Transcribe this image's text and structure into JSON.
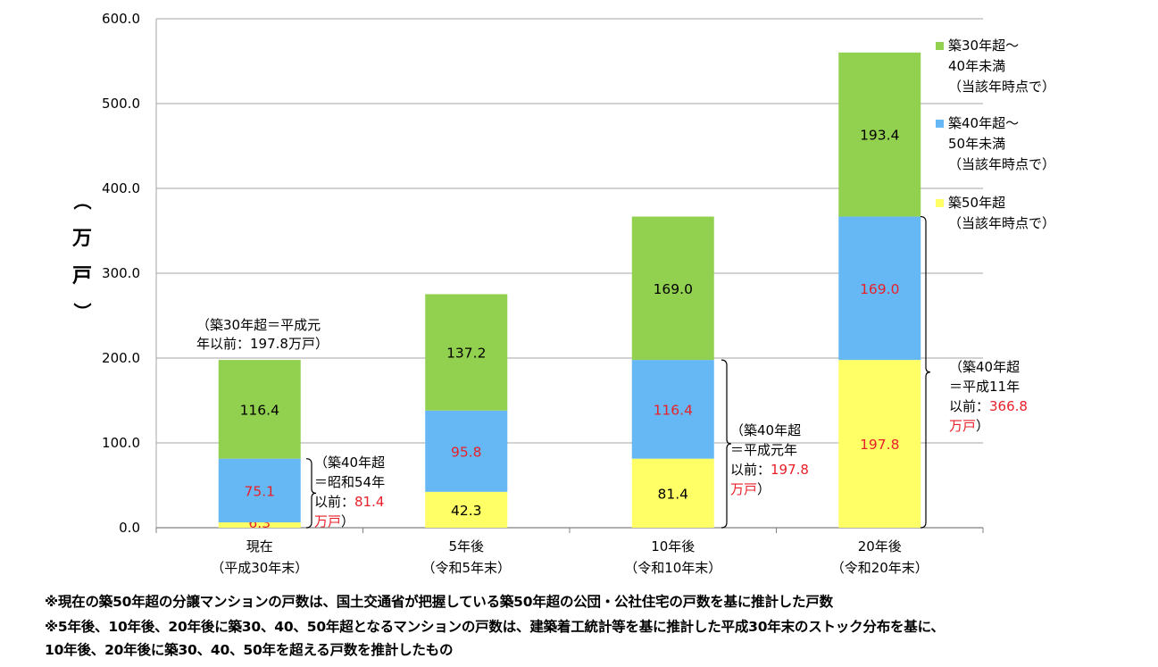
{
  "chart_data": {
    "type": "bar",
    "stacked": true,
    "ylabel": "（万戸）",
    "ylim": [
      0,
      600
    ],
    "yticks": [
      "0.0",
      "100.0",
      "200.0",
      "300.0",
      "400.0",
      "500.0",
      "600.0"
    ],
    "grid": true,
    "legend_position": "right",
    "categories": [
      {
        "line1": "現在",
        "line2": "（平成30年末）"
      },
      {
        "line1": "5年後",
        "line2": "（令和5年末）"
      },
      {
        "line1": "10年後",
        "line2": "（令和10年末）"
      },
      {
        "line1": "20年後",
        "line2": "（令和20年末）"
      }
    ],
    "series": [
      {
        "name": "築50年超",
        "legend": [
          "築50年超",
          "（当該年時点で）"
        ],
        "color": "#FFFF66",
        "values": [
          6.3,
          42.3,
          81.4,
          197.8
        ],
        "labels": [
          "6.3",
          "42.3",
          "81.4",
          "197.8"
        ],
        "label_colors": [
          "#E8202A",
          "#000000",
          "#000000",
          "#E8202A"
        ]
      },
      {
        "name": "築40年超～50年未満",
        "legend": [
          "築40年超～",
          "50年未満",
          "（当該年時点で）"
        ],
        "color": "#66B8F5",
        "values": [
          75.1,
          95.8,
          116.4,
          169.0
        ],
        "labels": [
          "75.1",
          "95.8",
          "116.4",
          "169.0"
        ],
        "label_colors": [
          "#E8202A",
          "#E8202A",
          "#E8202A",
          "#E8202A"
        ]
      },
      {
        "name": "築30年超～40年未満",
        "legend": [
          "築30年超～",
          "40年未満",
          "（当該年時点で）"
        ],
        "color": "#92D050",
        "values": [
          116.4,
          137.2,
          169.0,
          193.4
        ],
        "labels": [
          "116.4",
          "137.2",
          "169.0",
          "193.4"
        ],
        "label_colors": [
          "#000000",
          "#000000",
          "#000000",
          "#000000"
        ]
      }
    ],
    "annotations": {
      "top_note": [
        "（築30年超＝平成元",
        "年以前：197.8万戸）"
      ],
      "brackets": [
        {
          "category_index": 0,
          "from": 0,
          "to": 81.4,
          "lines": [
            [
              "（築40年超"
            ],
            [
              "＝昭和54年"
            ],
            [
              "以前：",
              "81.4"
            ],
            [
              "万戸",
              "）"
            ]
          ]
        },
        {
          "category_index": 2,
          "from": 0,
          "to": 197.8,
          "lines": [
            [
              "（築40年超"
            ],
            [
              "＝平成元年"
            ],
            [
              "以前：",
              "197.8"
            ],
            [
              "万戸",
              "）"
            ]
          ]
        },
        {
          "category_index": 3,
          "from": 0,
          "to": 366.8,
          "lines": [
            [
              "（築40年超"
            ],
            [
              "＝平成11年"
            ],
            [
              "以前：",
              "366.8"
            ],
            [
              "万戸",
              "）"
            ]
          ]
        }
      ]
    }
  },
  "notes": [
    "※現在の築50年超の分譲マンションの戸数は、国土交通省が把握している築50年超の公団・公社住宅の戸数を基に推計した戸数",
    "※5年後、10年後、20年後に築30、40、50年超となるマンションの戸数は、建築着工統計等を基に推計した平成30年末のストック分布を基に、",
    "10年後、20年後に築30、40、50年を超える戸数を推計したもの"
  ]
}
